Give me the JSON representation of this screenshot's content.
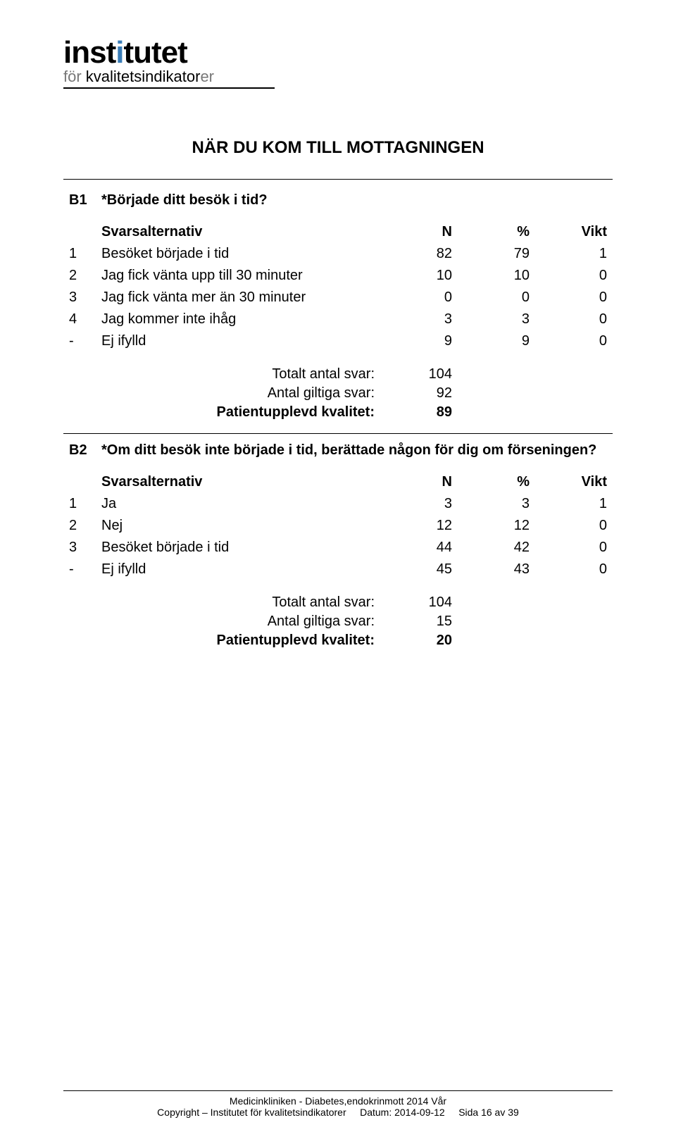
{
  "logo": {
    "line1_part1": "inst",
    "line1_part2": "tutet",
    "line2_prefix": "för ",
    "line2_main": "kvalitetsindikator",
    "line2_suffix": "er"
  },
  "section_title": "NÄR DU KOM TILL MOTTAGNINGEN",
  "headers": {
    "alt": "Svarsalternativ",
    "n": "N",
    "pct": "%",
    "vikt": "Vikt"
  },
  "summary_labels": {
    "total": "Totalt antal svar:",
    "valid": "Antal giltiga svar:",
    "quality": "Patientupplevd kvalitet:"
  },
  "q1": {
    "num": "B1",
    "text": "*Började ditt besök i tid?",
    "rows": [
      {
        "idx": "1",
        "label": "Besöket började i tid",
        "n": "82",
        "pct": "79",
        "vikt": "1"
      },
      {
        "idx": "2",
        "label": "Jag fick vänta upp till 30 minuter",
        "n": "10",
        "pct": "10",
        "vikt": "0"
      },
      {
        "idx": "3",
        "label": "Jag fick vänta mer än 30 minuter",
        "n": "0",
        "pct": "0",
        "vikt": "0"
      },
      {
        "idx": "4",
        "label": "Jag kommer inte ihåg",
        "n": "3",
        "pct": "3",
        "vikt": "0"
      },
      {
        "idx": "-",
        "label": "Ej ifylld",
        "n": "9",
        "pct": "9",
        "vikt": "0"
      }
    ],
    "total": "104",
    "valid": "92",
    "quality": "89"
  },
  "q2": {
    "num": "B2",
    "text": "*Om ditt besök inte började i tid, berättade någon för dig om förseningen?",
    "rows": [
      {
        "idx": "1",
        "label": "Ja",
        "n": "3",
        "pct": "3",
        "vikt": "1"
      },
      {
        "idx": "2",
        "label": "Nej",
        "n": "12",
        "pct": "12",
        "vikt": "0"
      },
      {
        "idx": "3",
        "label": "Besöket började i tid",
        "n": "44",
        "pct": "42",
        "vikt": "0"
      },
      {
        "idx": "-",
        "label": "Ej ifylld",
        "n": "45",
        "pct": "43",
        "vikt": "0"
      }
    ],
    "total": "104",
    "valid": "15",
    "quality": "20"
  },
  "footer": {
    "line1": "Medicinkliniken - Diabetes,endokrinmott 2014 Vår",
    "line2_left": "Copyright – Institutet för kvalitetsindikatorer",
    "line2_mid": "Datum: 2014-09-12",
    "line2_right": "Sida 16 av 39"
  }
}
